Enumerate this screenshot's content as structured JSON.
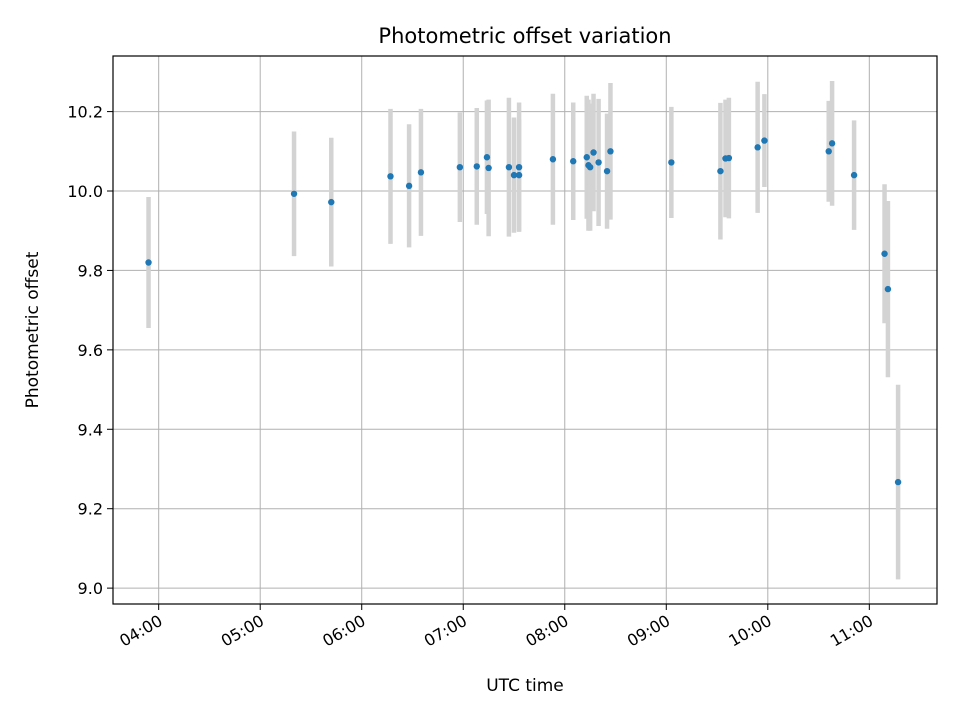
{
  "chart_data": {
    "type": "scatter",
    "title": "Photometric offset variation",
    "xlabel": "UTC time",
    "ylabel": "Photometric offset",
    "grid": true,
    "x_ticks": [
      "04:00",
      "05:00",
      "06:00",
      "07:00",
      "08:00",
      "09:00",
      "10:00",
      "11:00"
    ],
    "y_ticks": [
      "9.0",
      "9.2",
      "9.4",
      "9.6",
      "9.8",
      "10.0",
      "10.2"
    ],
    "ylim": [
      8.96,
      10.34
    ],
    "xlim": [
      "03:33",
      "11:40"
    ],
    "colors": {
      "point": "#1f77b4",
      "errorbar": "#d3d3d3",
      "grid": "#b0b0b0"
    },
    "points": [
      {
        "x": "03:54",
        "y": 9.82,
        "err": 0.165
      },
      {
        "x": "05:20",
        "y": 9.993,
        "err": 0.157
      },
      {
        "x": "05:42",
        "y": 9.972,
        "err": 0.162
      },
      {
        "x": "06:17",
        "y": 10.037,
        "err": 0.17
      },
      {
        "x": "06:28",
        "y": 10.013,
        "err": 0.155
      },
      {
        "x": "06:35",
        "y": 10.047,
        "err": 0.16
      },
      {
        "x": "06:58",
        "y": 10.06,
        "err": 0.138
      },
      {
        "x": "07:08",
        "y": 10.062,
        "err": 0.147
      },
      {
        "x": "07:14",
        "y": 10.085,
        "err": 0.143
      },
      {
        "x": "07:15",
        "y": 10.058,
        "err": 0.172
      },
      {
        "x": "07:27",
        "y": 10.06,
        "err": 0.175
      },
      {
        "x": "07:30",
        "y": 10.04,
        "err": 0.145
      },
      {
        "x": "07:33",
        "y": 10.04,
        "err": 0.14
      },
      {
        "x": "07:33",
        "y": 10.06,
        "err": 0.163
      },
      {
        "x": "07:53",
        "y": 10.08,
        "err": 0.165
      },
      {
        "x": "08:05",
        "y": 10.075,
        "err": 0.148
      },
      {
        "x": "08:13",
        "y": 10.085,
        "err": 0.155
      },
      {
        "x": "08:14",
        "y": 10.065,
        "err": 0.165
      },
      {
        "x": "08:15",
        "y": 10.06,
        "err": 0.16
      },
      {
        "x": "08:17",
        "y": 10.097,
        "err": 0.148
      },
      {
        "x": "08:20",
        "y": 10.072,
        "err": 0.16
      },
      {
        "x": "08:25",
        "y": 10.05,
        "err": 0.145
      },
      {
        "x": "08:27",
        "y": 10.1,
        "err": 0.172
      },
      {
        "x": "09:03",
        "y": 10.072,
        "err": 0.14
      },
      {
        "x": "09:32",
        "y": 10.05,
        "err": 0.172
      },
      {
        "x": "09:35",
        "y": 10.082,
        "err": 0.148
      },
      {
        "x": "09:37",
        "y": 10.083,
        "err": 0.152
      },
      {
        "x": "09:54",
        "y": 10.11,
        "err": 0.165
      },
      {
        "x": "09:58",
        "y": 10.127,
        "err": 0.117
      },
      {
        "x": "10:36",
        "y": 10.1,
        "err": 0.127
      },
      {
        "x": "10:38",
        "y": 10.12,
        "err": 0.157
      },
      {
        "x": "10:51",
        "y": 10.04,
        "err": 0.138
      },
      {
        "x": "11:09",
        "y": 9.842,
        "err": 0.175
      },
      {
        "x": "11:11",
        "y": 9.753,
        "err": 0.222
      },
      {
        "x": "11:17",
        "y": 9.267,
        "err": 0.245
      }
    ]
  }
}
